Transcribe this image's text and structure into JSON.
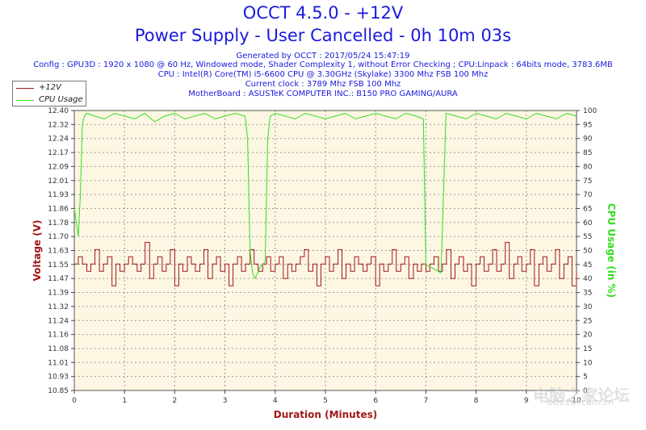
{
  "header": {
    "title1": "OCCT 4.5.0 - +12V",
    "title2": "Power Supply - User Cancelled - 0h 10m 03s",
    "info_lines": [
      "Generated by OCCT : 2017/05/24 15:47:19",
      "Config : GPU3D : 1920 x 1080 @ 60 Hz, Windowed mode, Shader Complexity 1, without Error Checking ; CPU:Linpack : 64bits mode, 3783.6MB",
      "CPU : Intel(R) Core(TM) i5-6600 CPU @ 3.30GHz (Skylake) 3300 Mhz FSB 100 Mhz",
      "Current clock : 3789 Mhz FSB 100 Mhz",
      "MotherBoard : ASUSTeK COMPUTER INC.: B150 PRO GAMING/AURA"
    ]
  },
  "watermark": {
    "text": "电脑之家论坛",
    "url": "bbs.zol.com.cn"
  },
  "colors": {
    "voltage": "#a01818",
    "cpu": "#33dd22",
    "plot_bg": "#fdf6e3",
    "grid": "#9a9a9a",
    "axis_text_left": "#a01818",
    "axis_text_right": "#33dd22"
  },
  "chart_data": {
    "type": "line",
    "xlabel": "Duration (Minutes)",
    "ylabel_left": "Voltage (V)",
    "ylabel_right": "CPU Usage (in %)",
    "xlim": [
      0,
      10
    ],
    "ylim_left": [
      10.85,
      12.4
    ],
    "ylim_right": [
      0,
      100
    ],
    "x_ticks": [
      "0",
      "1",
      "2",
      "3",
      "4",
      "5",
      "6",
      "7",
      "8",
      "9",
      "10"
    ],
    "y_ticks_left": [
      "12.40",
      "12.32",
      "12.24",
      "12.17",
      "12.09",
      "12.01",
      "11.93",
      "11.86",
      "11.78",
      "11.70",
      "11.63",
      "11.55",
      "11.47",
      "11.39",
      "11.32",
      "11.24",
      "11.16",
      "11.08",
      "11.01",
      "10.93",
      "10.85"
    ],
    "y_ticks_right": [
      "100",
      "95",
      "90",
      "85",
      "80",
      "75",
      "70",
      "65",
      "60",
      "55",
      "50",
      "45",
      "40",
      "35",
      "30",
      "25",
      "20",
      "15",
      "10",
      "5",
      "0"
    ],
    "legend_placement": "top-left",
    "grid": true,
    "series": [
      {
        "name": "+12V",
        "axis": "left",
        "color": "#a01818",
        "x": [
          0.0,
          0.08,
          0.16,
          0.25,
          0.33,
          0.41,
          0.5,
          0.58,
          0.66,
          0.75,
          0.83,
          0.91,
          1.0,
          1.08,
          1.16,
          1.25,
          1.33,
          1.41,
          1.5,
          1.58,
          1.66,
          1.75,
          1.83,
          1.91,
          2.0,
          2.08,
          2.16,
          2.25,
          2.33,
          2.41,
          2.5,
          2.58,
          2.66,
          2.75,
          2.83,
          2.91,
          3.0,
          3.08,
          3.16,
          3.25,
          3.33,
          3.41,
          3.5,
          3.58,
          3.66,
          3.75,
          3.83,
          3.91,
          4.0,
          4.08,
          4.16,
          4.25,
          4.33,
          4.41,
          4.5,
          4.58,
          4.66,
          4.75,
          4.83,
          4.91,
          5.0,
          5.08,
          5.16,
          5.25,
          5.33,
          5.41,
          5.5,
          5.58,
          5.66,
          5.75,
          5.83,
          5.91,
          6.0,
          6.08,
          6.16,
          6.25,
          6.33,
          6.41,
          6.5,
          6.58,
          6.66,
          6.75,
          6.83,
          6.91,
          7.0,
          7.08,
          7.16,
          7.25,
          7.33,
          7.41,
          7.5,
          7.58,
          7.66,
          7.75,
          7.83,
          7.91,
          8.0,
          8.08,
          8.16,
          8.25,
          8.33,
          8.41,
          8.5,
          8.58,
          8.66,
          8.75,
          8.83,
          8.91,
          9.0,
          9.08,
          9.16,
          9.25,
          9.33,
          9.41,
          9.5,
          9.58,
          9.66,
          9.75,
          9.83,
          9.91,
          10.0
        ],
        "y": [
          11.55,
          11.59,
          11.55,
          11.51,
          11.55,
          11.63,
          11.51,
          11.55,
          11.59,
          11.43,
          11.55,
          11.51,
          11.55,
          11.59,
          11.55,
          11.51,
          11.55,
          11.67,
          11.47,
          11.55,
          11.59,
          11.51,
          11.55,
          11.63,
          11.43,
          11.55,
          11.51,
          11.59,
          11.55,
          11.51,
          11.55,
          11.63,
          11.47,
          11.55,
          11.59,
          11.51,
          11.55,
          11.43,
          11.55,
          11.59,
          11.51,
          11.55,
          11.63,
          11.55,
          11.51,
          11.55,
          11.59,
          11.51,
          11.55,
          11.59,
          11.47,
          11.55,
          11.51,
          11.55,
          11.59,
          11.63,
          11.51,
          11.55,
          11.43,
          11.55,
          11.59,
          11.51,
          11.55,
          11.63,
          11.47,
          11.55,
          11.51,
          11.59,
          11.55,
          11.51,
          11.55,
          11.59,
          11.43,
          11.55,
          11.51,
          11.55,
          11.63,
          11.51,
          11.55,
          11.59,
          11.47,
          11.55,
          11.51,
          11.55,
          11.51,
          11.55,
          11.59,
          11.51,
          11.55,
          11.63,
          11.47,
          11.55,
          11.59,
          11.51,
          11.55,
          11.43,
          11.55,
          11.59,
          11.51,
          11.55,
          11.63,
          11.51,
          11.55,
          11.67,
          11.47,
          11.55,
          11.59,
          11.51,
          11.55,
          11.63,
          11.43,
          11.55,
          11.59,
          11.51,
          11.55,
          11.63,
          11.47,
          11.55,
          11.59,
          11.43,
          11.51
        ]
      },
      {
        "name": "CPU Usage",
        "axis": "right",
        "color": "#33dd22",
        "x": [
          0.0,
          0.04,
          0.08,
          0.12,
          0.16,
          0.2,
          0.25,
          0.4,
          0.6,
          0.8,
          1.0,
          1.2,
          1.4,
          1.6,
          1.8,
          2.0,
          2.2,
          2.4,
          2.6,
          2.8,
          3.0,
          3.2,
          3.4,
          3.45,
          3.5,
          3.55,
          3.6,
          3.7,
          3.8,
          3.85,
          3.9,
          4.0,
          4.2,
          4.4,
          4.6,
          4.8,
          5.0,
          5.2,
          5.4,
          5.6,
          5.8,
          6.0,
          6.2,
          6.4,
          6.6,
          6.8,
          6.95,
          7.0,
          7.1,
          7.2,
          7.3,
          7.35,
          7.4,
          7.6,
          7.8,
          8.0,
          8.2,
          8.4,
          8.6,
          8.8,
          9.0,
          9.2,
          9.4,
          9.6,
          9.8,
          10.0
        ],
        "y": [
          65,
          60,
          55,
          70,
          95,
          98,
          99,
          98,
          97,
          99,
          98,
          97,
          99,
          96,
          98,
          99,
          97,
          98,
          99,
          97,
          98,
          99,
          98,
          90,
          50,
          42,
          40,
          44,
          46,
          90,
          98,
          99,
          98,
          97,
          99,
          98,
          97,
          98,
          99,
          97,
          98,
          99,
          98,
          97,
          99,
          98,
          97,
          45,
          44,
          43,
          42,
          70,
          99,
          98,
          97,
          99,
          98,
          97,
          99,
          98,
          97,
          99,
          98,
          97,
          99,
          98
        ]
      }
    ]
  }
}
